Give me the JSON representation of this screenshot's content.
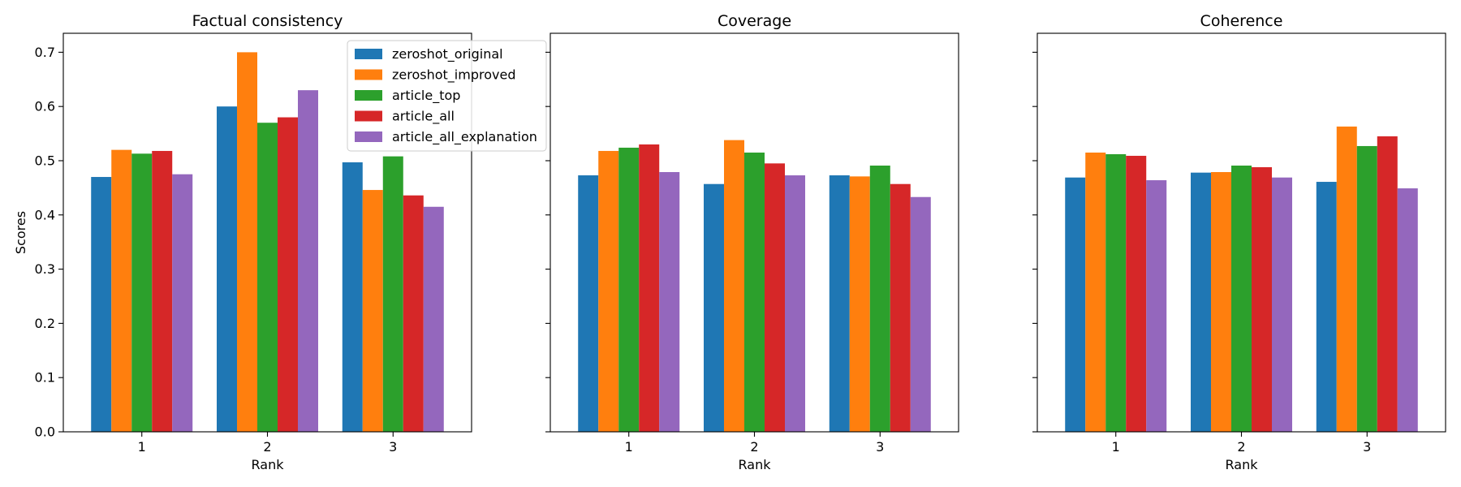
{
  "chart_data": {
    "type": "bar",
    "ylabel": "Scores",
    "ylim": [
      0,
      0.735
    ],
    "yticks": [
      "0.0",
      "0.1",
      "0.2",
      "0.3",
      "0.4",
      "0.5",
      "0.6",
      "0.7"
    ],
    "legend": {
      "placement": "top-right",
      "panel": 0
    },
    "series_colors": [
      "#1f77b4",
      "#ff7f0e",
      "#2ca02c",
      "#d62728",
      "#9467bd"
    ],
    "series_names": [
      "zeroshot_original",
      "zeroshot_improved",
      "article_top",
      "article_all",
      "article_all_explanation"
    ],
    "panels": [
      {
        "title": "Factual consistency",
        "xlabel": "Rank",
        "categories": [
          "1",
          "2",
          "3"
        ],
        "series": [
          {
            "name": "zeroshot_original",
            "values": [
              0.47,
              0.6,
              0.497
            ]
          },
          {
            "name": "zeroshot_improved",
            "values": [
              0.52,
              0.7,
              0.446
            ]
          },
          {
            "name": "article_top",
            "values": [
              0.513,
              0.57,
              0.508
            ]
          },
          {
            "name": "article_all",
            "values": [
              0.518,
              0.58,
              0.436
            ]
          },
          {
            "name": "article_all_explanation",
            "values": [
              0.475,
              0.63,
              0.415
            ]
          }
        ]
      },
      {
        "title": "Coverage",
        "xlabel": "Rank",
        "categories": [
          "1",
          "2",
          "3"
        ],
        "series": [
          {
            "name": "zeroshot_original",
            "values": [
              0.473,
              0.457,
              0.473
            ]
          },
          {
            "name": "zeroshot_improved",
            "values": [
              0.518,
              0.538,
              0.471
            ]
          },
          {
            "name": "article_top",
            "values": [
              0.524,
              0.515,
              0.491
            ]
          },
          {
            "name": "article_all",
            "values": [
              0.53,
              0.495,
              0.457
            ]
          },
          {
            "name": "article_all_explanation",
            "values": [
              0.479,
              0.473,
              0.433
            ]
          }
        ]
      },
      {
        "title": "Coherence",
        "xlabel": "Rank",
        "categories": [
          "1",
          "2",
          "3"
        ],
        "series": [
          {
            "name": "zeroshot_original",
            "values": [
              0.469,
              0.478,
              0.461
            ]
          },
          {
            "name": "zeroshot_improved",
            "values": [
              0.515,
              0.479,
              0.563
            ]
          },
          {
            "name": "article_top",
            "values": [
              0.512,
              0.491,
              0.527
            ]
          },
          {
            "name": "article_all",
            "values": [
              0.509,
              0.488,
              0.545
            ]
          },
          {
            "name": "article_all_explanation",
            "values": [
              0.464,
              0.469,
              0.449
            ]
          }
        ]
      }
    ]
  }
}
